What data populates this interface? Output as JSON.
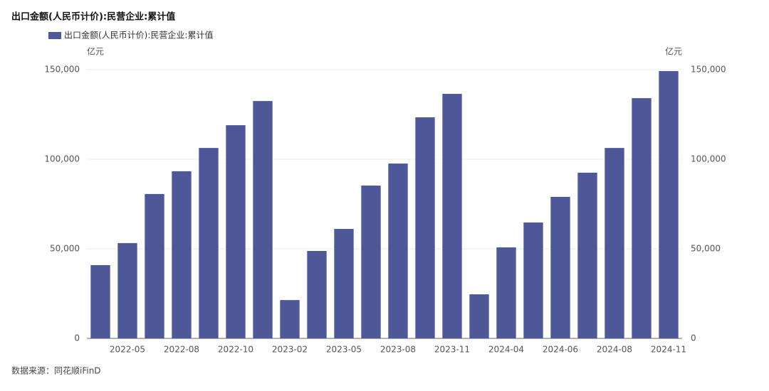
{
  "chart_data": {
    "type": "bar",
    "title": "出口金额(人民币计价):民营企业:累计值",
    "source": "数据来源：同花顺iFinD",
    "y_unit": "亿元",
    "y2_unit": "亿元",
    "categories": [
      null,
      "2022-05",
      null,
      "2022-08",
      null,
      "2022-10",
      null,
      "2023-02",
      null,
      "2023-05",
      null,
      "2023-08",
      null,
      "2023-11",
      null,
      "2024-04",
      null,
      "2024-06",
      null,
      "2024-08",
      null,
      "2024-11"
    ],
    "series": [
      {
        "name": "出口金额(人民币计价):民营企业:累计值",
        "color": "#4e5899",
        "values": [
          40900,
          53200,
          80600,
          93300,
          106300,
          119000,
          132500,
          21400,
          48800,
          61100,
          85300,
          97600,
          123400,
          136500,
          24600,
          50800,
          64700,
          79000,
          92500,
          106300,
          134100,
          149200
        ]
      }
    ],
    "ylim": [
      0,
      150000
    ],
    "yticks": [
      0,
      {
        "value": 50000,
        "label": "50,000"
      },
      {
        "value": 100000,
        "label": "100,000"
      },
      {
        "value": 150000,
        "label": "150,000"
      }
    ],
    "y2lim": [
      0,
      150000
    ],
    "y2ticks": [
      0,
      {
        "value": 50000,
        "label": "50,000"
      },
      {
        "value": 100000,
        "label": "100,000"
      },
      {
        "value": 150000,
        "label": "150,000"
      }
    ],
    "grid": true
  }
}
